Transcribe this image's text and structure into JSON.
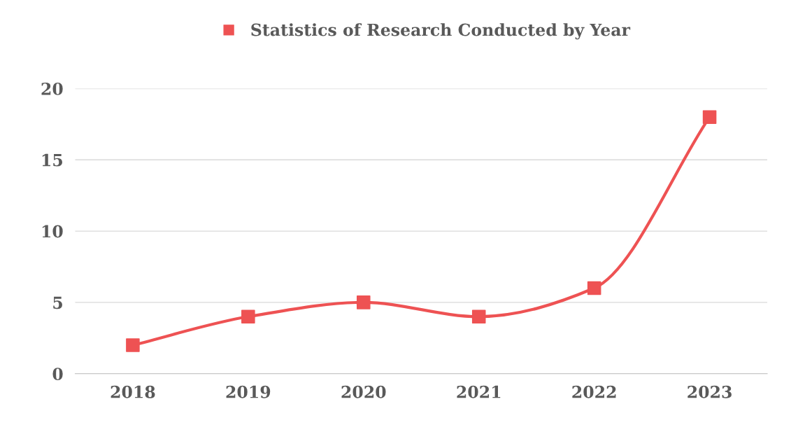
{
  "chart_data": {
    "type": "line",
    "categories": [
      "2018",
      "2019",
      "2020",
      "2021",
      "2022",
      "2023"
    ],
    "series": [
      {
        "name": "Statistics of Research Conducted by Year",
        "color": "#ee5253",
        "values": [
          2,
          4,
          5,
          4,
          6,
          18
        ]
      }
    ],
    "ylim": [
      0,
      20
    ],
    "yticks": [
      0,
      5,
      10,
      15,
      20
    ],
    "grid": "y",
    "legend": "top",
    "marker": "square",
    "line_style": "solid"
  }
}
